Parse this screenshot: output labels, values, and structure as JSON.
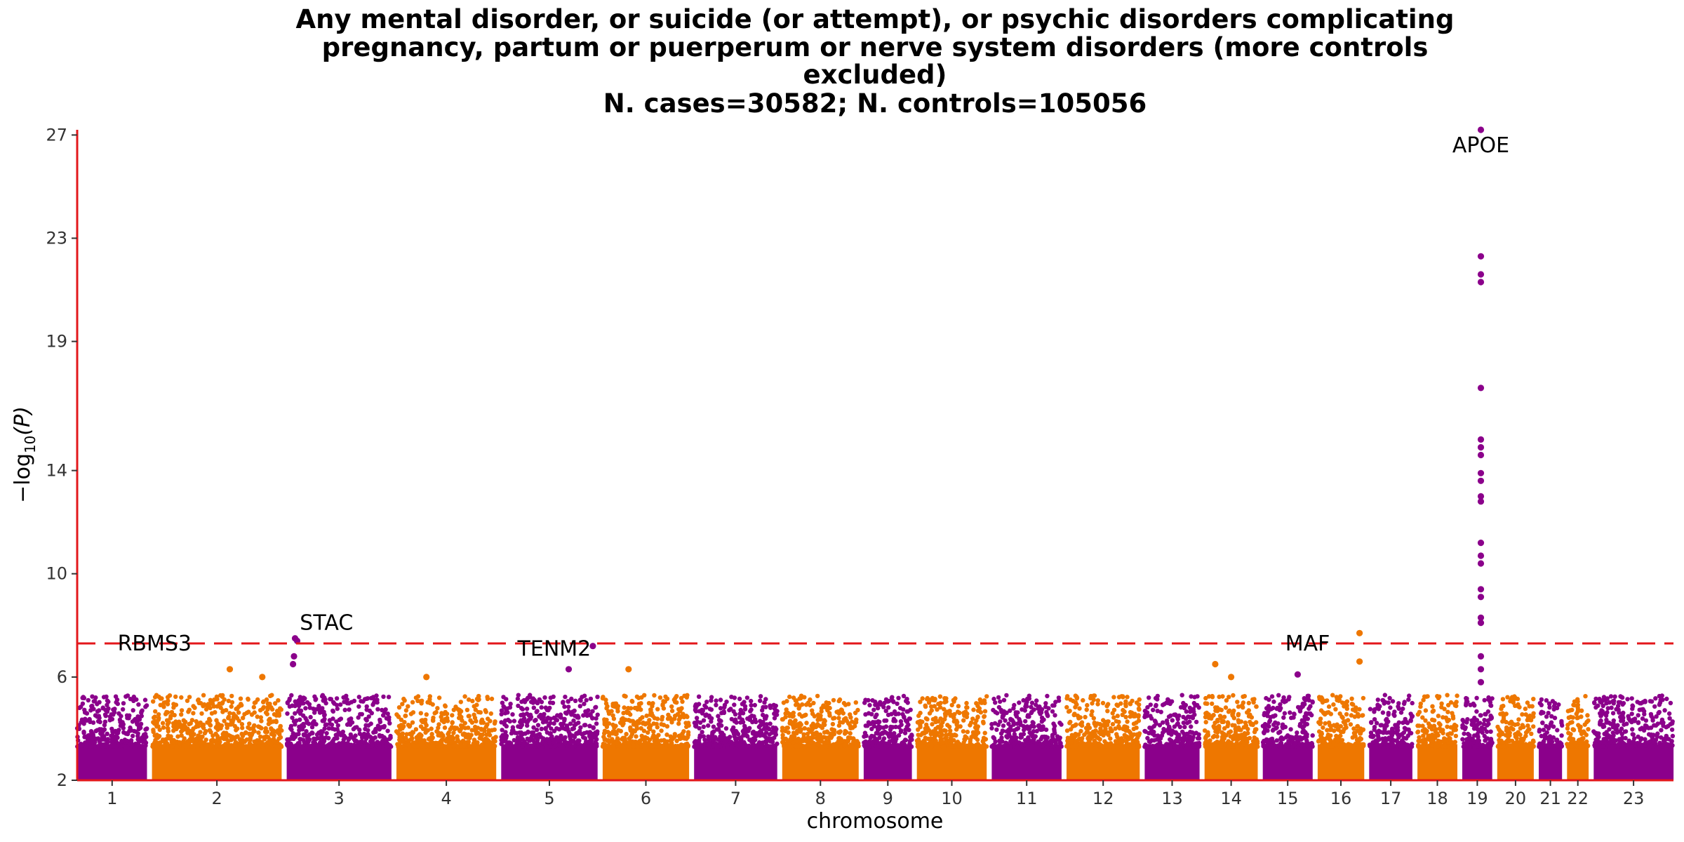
{
  "chart_data": {
    "type": "scatter",
    "subtype": "manhattan",
    "title_lines": [
      "Any mental disorder, or suicide (or attempt), or psychic disorders complicating",
      "pregnancy, partum or puerperum or nerve system disorders (more controls",
      "excluded)",
      "N. cases=30582; N. controls=105056"
    ],
    "xlabel": "chromosome",
    "ylabel_main": "−log",
    "ylabel_sub": "10",
    "ylabel_var": "(P)",
    "ylim": [
      2,
      27.2
    ],
    "y_ticks": [
      2,
      6,
      10,
      14,
      19,
      23,
      27
    ],
    "significance_line": 7.3,
    "grid": false,
    "colors": {
      "odd": "#8B008B",
      "even": "#EE7700",
      "threshold": "#E3171B",
      "axis": "#E3171B"
    },
    "chromosomes": [
      {
        "label": "1",
        "start": 0.0,
        "end": 4.2
      },
      {
        "label": "2",
        "start": 4.5,
        "end": 12.3
      },
      {
        "label": "3",
        "start": 12.6,
        "end": 18.9
      },
      {
        "label": "4",
        "start": 19.2,
        "end": 25.2
      },
      {
        "label": "5",
        "start": 25.5,
        "end": 31.3
      },
      {
        "label": "6",
        "start": 31.6,
        "end": 36.8
      },
      {
        "label": "7",
        "start": 37.1,
        "end": 42.1
      },
      {
        "label": "8",
        "start": 42.4,
        "end": 47.0
      },
      {
        "label": "9",
        "start": 47.3,
        "end": 50.2
      },
      {
        "label": "10",
        "start": 50.5,
        "end": 54.7
      },
      {
        "label": "11",
        "start": 55.0,
        "end": 59.2
      },
      {
        "label": "12",
        "start": 59.5,
        "end": 63.9
      },
      {
        "label": "13",
        "start": 64.2,
        "end": 67.5
      },
      {
        "label": "14",
        "start": 67.8,
        "end": 71.0
      },
      {
        "label": "15",
        "start": 71.3,
        "end": 74.3
      },
      {
        "label": "16",
        "start": 74.6,
        "end": 77.4
      },
      {
        "label": "17",
        "start": 77.7,
        "end": 80.3
      },
      {
        "label": "18",
        "start": 80.6,
        "end": 83.0
      },
      {
        "label": "19",
        "start": 83.3,
        "end": 85.1
      },
      {
        "label": "20",
        "start": 85.4,
        "end": 87.6
      },
      {
        "label": "21",
        "start": 87.9,
        "end": 89.3
      },
      {
        "label": "22",
        "start": 89.6,
        "end": 90.9
      },
      {
        "label": "23",
        "start": 91.2,
        "end": 96.0
      }
    ],
    "peaks": [
      {
        "chr": 2,
        "pos": 0.6,
        "p": 6.3
      },
      {
        "chr": 2,
        "pos": 0.85,
        "p": 6.0
      },
      {
        "chr": 3,
        "pos": 0.08,
        "p": 7.5
      },
      {
        "chr": 3,
        "pos": 0.1,
        "p": 7.4
      },
      {
        "chr": 3,
        "pos": 0.07,
        "p": 6.8
      },
      {
        "chr": 3,
        "pos": 0.06,
        "p": 6.5
      },
      {
        "chr": 4,
        "pos": 0.3,
        "p": 6.0
      },
      {
        "chr": 5,
        "pos": 0.7,
        "p": 6.3
      },
      {
        "chr": 5,
        "pos": 0.95,
        "p": 7.2
      },
      {
        "chr": 6,
        "pos": 0.3,
        "p": 6.3
      },
      {
        "chr": 14,
        "pos": 0.2,
        "p": 6.5
      },
      {
        "chr": 14,
        "pos": 0.5,
        "p": 6.0
      },
      {
        "chr": 15,
        "pos": 0.7,
        "p": 6.1
      },
      {
        "chr": 16,
        "pos": 0.9,
        "p": 7.7
      },
      {
        "chr": 16,
        "pos": 0.9,
        "p": 6.6
      },
      {
        "chr": 19,
        "pos": 0.62,
        "p": 27.2
      },
      {
        "chr": 19,
        "pos": 0.62,
        "p": 22.3
      },
      {
        "chr": 19,
        "pos": 0.62,
        "p": 21.6
      },
      {
        "chr": 19,
        "pos": 0.62,
        "p": 21.3
      },
      {
        "chr": 19,
        "pos": 0.62,
        "p": 17.2
      },
      {
        "chr": 19,
        "pos": 0.62,
        "p": 15.2
      },
      {
        "chr": 19,
        "pos": 0.62,
        "p": 14.9
      },
      {
        "chr": 19,
        "pos": 0.62,
        "p": 14.6
      },
      {
        "chr": 19,
        "pos": 0.62,
        "p": 13.9
      },
      {
        "chr": 19,
        "pos": 0.62,
        "p": 13.6
      },
      {
        "chr": 19,
        "pos": 0.62,
        "p": 13.0
      },
      {
        "chr": 19,
        "pos": 0.62,
        "p": 12.8
      },
      {
        "chr": 19,
        "pos": 0.62,
        "p": 11.2
      },
      {
        "chr": 19,
        "pos": 0.62,
        "p": 10.7
      },
      {
        "chr": 19,
        "pos": 0.62,
        "p": 10.4
      },
      {
        "chr": 19,
        "pos": 0.62,
        "p": 9.4
      },
      {
        "chr": 19,
        "pos": 0.62,
        "p": 9.1
      },
      {
        "chr": 19,
        "pos": 0.62,
        "p": 8.3
      },
      {
        "chr": 19,
        "pos": 0.62,
        "p": 8.1
      },
      {
        "chr": 19,
        "pos": 0.62,
        "p": 6.8
      },
      {
        "chr": 19,
        "pos": 0.62,
        "p": 6.3
      },
      {
        "chr": 19,
        "pos": 0.62,
        "p": 5.8
      }
    ],
    "gene_labels": [
      {
        "text": "RBMS3",
        "chr": 2,
        "pos": 0.02,
        "p": 7.3
      },
      {
        "text": "STAC",
        "chr": 3,
        "pos": 0.38,
        "p": 8.1
      },
      {
        "text": "TENM2",
        "chr": 5,
        "pos": 0.55,
        "p": 7.1
      },
      {
        "text": "MAF",
        "chr": 15,
        "pos": 0.9,
        "p": 7.3
      },
      {
        "text": "APOE",
        "chr": 19,
        "pos": 0.62,
        "p": 26.6
      }
    ]
  }
}
